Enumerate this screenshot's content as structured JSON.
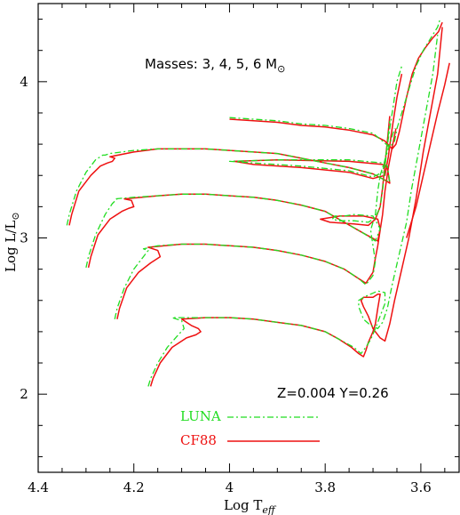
{
  "chart_data": {
    "type": "line",
    "xlabel": "Log T",
    "xlabel_sub": "eff",
    "ylabel": "Log L/L",
    "ylabel_sub": "⊙",
    "xlim": [
      4.4,
      3.52
    ],
    "ylim": [
      1.5,
      4.5
    ],
    "x_ticks": [
      "4.4",
      "4.2",
      "4",
      "3.8",
      "3.6"
    ],
    "y_ticks": [
      "2",
      "3",
      "4"
    ],
    "annotation_masses": "Masses: 3, 4, 5, 6 M",
    "annotation_sun": "⊙",
    "annotation_composition": "Z=0.004  Y=0.26",
    "colors": {
      "LUNA": "#22dd22",
      "CF88": "#ee1111"
    },
    "legend": [
      {
        "label": "LUNA",
        "style": "dash-dot",
        "color": "#22dd22"
      },
      {
        "label": "CF88",
        "style": "solid",
        "color": "#ee1111"
      }
    ],
    "series": [
      {
        "name": "LUNA",
        "mass": 3,
        "x": [
          4.17,
          4.165,
          4.15,
          4.13,
          4.11,
          4.095,
          4.1,
          4.12,
          4.05,
          4.0,
          3.95,
          3.9,
          3.85,
          3.8,
          3.77,
          3.74,
          3.725,
          3.715,
          3.705,
          3.695,
          3.685,
          3.675,
          3.675,
          3.69,
          3.705,
          3.72,
          3.73,
          3.73,
          3.72,
          3.705,
          3.69,
          3.68,
          3.67,
          3.66,
          3.645,
          3.63,
          3.62,
          3.605,
          3.59,
          3.575,
          3.565
        ],
        "y": [
          2.05,
          2.1,
          2.2,
          2.3,
          2.37,
          2.42,
          2.47,
          2.49,
          2.49,
          2.49,
          2.48,
          2.46,
          2.44,
          2.4,
          2.35,
          2.3,
          2.26,
          2.3,
          2.35,
          2.42,
          2.5,
          2.58,
          2.65,
          2.66,
          2.64,
          2.62,
          2.6,
          2.56,
          2.48,
          2.44,
          2.42,
          2.46,
          2.55,
          2.7,
          2.9,
          3.1,
          3.3,
          3.55,
          3.8,
          4.05,
          4.3
        ]
      },
      {
        "name": "CF88",
        "mass": 3,
        "x": [
          4.165,
          4.16,
          4.145,
          4.12,
          4.09,
          4.07,
          4.06,
          4.065,
          4.08,
          4.1,
          4.05,
          4.0,
          3.95,
          3.9,
          3.85,
          3.8,
          3.77,
          3.745,
          3.73,
          3.72,
          3.715,
          3.71,
          3.7,
          3.695,
          3.69,
          3.685,
          3.69,
          3.7,
          3.71,
          3.72,
          3.725,
          3.72,
          3.71,
          3.7,
          3.685,
          3.675,
          3.665,
          3.655,
          3.64,
          3.625,
          3.61,
          3.595,
          3.58,
          3.565,
          3.555
        ],
        "y": [
          2.05,
          2.1,
          2.2,
          2.3,
          2.36,
          2.38,
          2.4,
          2.42,
          2.44,
          2.48,
          2.49,
          2.49,
          2.48,
          2.46,
          2.44,
          2.4,
          2.35,
          2.3,
          2.26,
          2.24,
          2.28,
          2.33,
          2.4,
          2.45,
          2.55,
          2.64,
          2.64,
          2.62,
          2.62,
          2.62,
          2.6,
          2.56,
          2.5,
          2.42,
          2.36,
          2.34,
          2.45,
          2.6,
          2.8,
          3.0,
          3.25,
          3.55,
          3.8,
          4.05,
          4.35
        ]
      },
      {
        "name": "LUNA",
        "mass": 4,
        "x": [
          4.24,
          4.235,
          4.22,
          4.2,
          4.18,
          4.17,
          4.18,
          4.15,
          4.1,
          4.05,
          4.0,
          3.95,
          3.9,
          3.85,
          3.8,
          3.76,
          3.73,
          3.715,
          3.7,
          3.695,
          3.7,
          3.705,
          3.7,
          3.695,
          3.69,
          3.685,
          3.675,
          3.665,
          3.655
        ],
        "y": [
          2.48,
          2.55,
          2.68,
          2.8,
          2.88,
          2.92,
          2.93,
          2.95,
          2.96,
          2.96,
          2.95,
          2.94,
          2.92,
          2.89,
          2.85,
          2.8,
          2.74,
          2.7,
          2.76,
          2.85,
          2.95,
          3.05,
          3.1,
          3.15,
          3.3,
          3.4,
          3.5,
          3.6,
          3.7
        ]
      },
      {
        "name": "CF88",
        "mass": 4,
        "x": [
          4.235,
          4.23,
          4.215,
          4.19,
          4.165,
          4.155,
          4.145,
          4.15,
          4.17,
          4.1,
          4.05,
          4.0,
          3.95,
          3.9,
          3.85,
          3.8,
          3.76,
          3.73,
          3.715,
          3.7,
          3.695,
          3.69,
          3.685,
          3.68,
          3.675,
          3.668,
          3.66,
          3.652
        ],
        "y": [
          2.48,
          2.55,
          2.68,
          2.78,
          2.84,
          2.86,
          2.88,
          2.92,
          2.94,
          2.96,
          2.96,
          2.95,
          2.94,
          2.92,
          2.89,
          2.85,
          2.8,
          2.74,
          2.71,
          2.78,
          2.87,
          2.95,
          3.05,
          3.15,
          3.3,
          3.45,
          3.58,
          3.7
        ]
      },
      {
        "name": "LUNA",
        "mass": 5,
        "x": [
          4.3,
          4.295,
          4.28,
          4.26,
          4.245,
          4.235,
          4.24,
          4.2,
          4.15,
          4.1,
          4.05,
          4.0,
          3.95,
          3.9,
          3.85,
          3.8,
          3.76,
          3.72,
          3.695,
          3.685,
          3.7,
          3.74,
          3.76,
          3.78,
          3.785,
          3.77,
          3.74,
          3.71,
          3.695,
          3.685,
          3.68,
          3.675,
          3.67,
          3.665
        ],
        "y": [
          2.81,
          2.88,
          3.02,
          3.15,
          3.22,
          3.25,
          3.25,
          3.26,
          3.27,
          3.28,
          3.28,
          3.27,
          3.26,
          3.24,
          3.21,
          3.17,
          3.1,
          3.03,
          2.98,
          3.06,
          3.14,
          3.15,
          3.14,
          3.14,
          3.12,
          3.11,
          3.11,
          3.1,
          3.13,
          3.2,
          3.3,
          3.45,
          3.6,
          3.75
        ]
      },
      {
        "name": "CF88",
        "mass": 5,
        "x": [
          4.295,
          4.29,
          4.275,
          4.25,
          4.225,
          4.21,
          4.2,
          4.205,
          4.22,
          4.15,
          4.1,
          4.05,
          4.0,
          3.95,
          3.9,
          3.85,
          3.8,
          3.76,
          3.72,
          3.69,
          3.685,
          3.69,
          3.72,
          3.77,
          3.81,
          3.79,
          3.74,
          3.71,
          3.695,
          3.685,
          3.68,
          3.675,
          3.67,
          3.665
        ],
        "y": [
          2.81,
          2.88,
          3.02,
          3.12,
          3.17,
          3.19,
          3.2,
          3.24,
          3.25,
          3.27,
          3.28,
          3.28,
          3.27,
          3.26,
          3.24,
          3.21,
          3.17,
          3.1,
          3.03,
          2.98,
          3.06,
          3.12,
          3.14,
          3.14,
          3.12,
          3.1,
          3.09,
          3.08,
          3.12,
          3.2,
          3.32,
          3.47,
          3.62,
          3.78
        ]
      },
      {
        "name": "LUNA",
        "mass": 6,
        "x": [
          4.34,
          4.335,
          4.32,
          4.3,
          4.28,
          4.265,
          4.26,
          4.25,
          4.2,
          4.15,
          4.1,
          4.05,
          4.0,
          3.95,
          3.9,
          3.85,
          3.8,
          3.75,
          3.7,
          3.675,
          3.665,
          3.67,
          3.68,
          3.75,
          3.9,
          4.0,
          3.95,
          3.85,
          3.75,
          3.7,
          3.68,
          3.672,
          3.665,
          3.66,
          3.655,
          3.65,
          3.64
        ],
        "y": [
          3.08,
          3.15,
          3.3,
          3.42,
          3.5,
          3.53,
          3.53,
          3.54,
          3.56,
          3.57,
          3.57,
          3.57,
          3.56,
          3.55,
          3.54,
          3.51,
          3.48,
          3.45,
          3.41,
          3.37,
          3.36,
          3.46,
          3.48,
          3.5,
          3.5,
          3.49,
          3.48,
          3.46,
          3.43,
          3.39,
          3.42,
          3.55,
          3.7,
          3.8,
          3.9,
          4.0,
          4.1
        ]
      },
      {
        "name": "CF88",
        "mass": 6,
        "x": [
          4.335,
          4.33,
          4.315,
          4.29,
          4.27,
          4.255,
          4.245,
          4.24,
          4.25,
          4.2,
          4.15,
          4.1,
          4.05,
          4.0,
          3.95,
          3.9,
          3.85,
          3.8,
          3.75,
          3.7,
          3.675,
          3.665,
          3.67,
          3.68,
          3.75,
          3.9,
          3.99,
          3.95,
          3.85,
          3.75,
          3.7,
          3.675,
          3.668,
          3.662,
          3.656,
          3.65,
          3.64
        ],
        "y": [
          3.08,
          3.15,
          3.3,
          3.4,
          3.46,
          3.48,
          3.49,
          3.51,
          3.52,
          3.55,
          3.57,
          3.57,
          3.57,
          3.56,
          3.55,
          3.54,
          3.51,
          3.48,
          3.45,
          3.41,
          3.37,
          3.35,
          3.45,
          3.47,
          3.49,
          3.5,
          3.49,
          3.47,
          3.45,
          3.42,
          3.38,
          3.4,
          3.52,
          3.66,
          3.78,
          3.9,
          4.05
        ]
      },
      {
        "name": "LUNA",
        "mass": "6b",
        "x": [
          4.0,
          3.95,
          3.9,
          3.85,
          3.8,
          3.75,
          3.7,
          3.68,
          3.665,
          3.655,
          3.65,
          3.64,
          3.625,
          3.61,
          3.595,
          3.585,
          3.575,
          3.565,
          3.56
        ],
        "y": [
          3.77,
          3.76,
          3.75,
          3.73,
          3.72,
          3.7,
          3.67,
          3.62,
          3.58,
          3.62,
          3.7,
          3.8,
          3.95,
          4.1,
          4.2,
          4.25,
          4.3,
          4.35,
          4.4
        ]
      },
      {
        "name": "CF88",
        "mass": "6b",
        "x": [
          4.0,
          3.95,
          3.9,
          3.85,
          3.8,
          3.75,
          3.7,
          3.675,
          3.66,
          3.652,
          3.645,
          3.638,
          3.63,
          3.618,
          3.605,
          3.59,
          3.575,
          3.563,
          3.555
        ],
        "y": [
          3.76,
          3.75,
          3.74,
          3.72,
          3.71,
          3.69,
          3.66,
          3.62,
          3.57,
          3.6,
          3.68,
          3.78,
          3.9,
          4.05,
          4.15,
          4.22,
          4.28,
          4.32,
          4.38
        ]
      },
      {
        "name": "CF88",
        "mass": "tail",
        "x": [
          3.63,
          3.61,
          3.595,
          3.58,
          3.565,
          3.55,
          3.54
        ],
        "y": [
          3.0,
          3.2,
          3.4,
          3.6,
          3.8,
          3.98,
          4.12
        ]
      }
    ]
  }
}
